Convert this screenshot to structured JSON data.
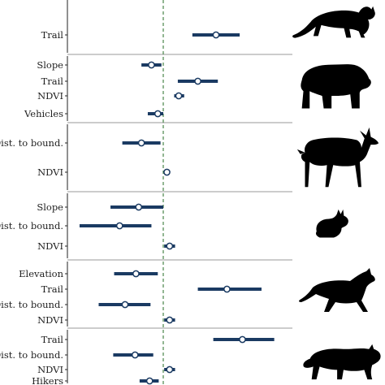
{
  "chart_data": {
    "type": "coefficient-plot",
    "reference_line": 0,
    "reference_line_color": "#3a7a3a",
    "interval_color": "#1a3a62",
    "point_fill": "#ffffff",
    "separator_color": "#9a9a9a",
    "panels": [
      {
        "animal": "cougar-silhouette",
        "rows": [
          {
            "label": "Trail",
            "est": 0.58,
            "lo": 0.32,
            "hi": 0.84
          }
        ]
      },
      {
        "animal": "black-bear-silhouette",
        "rows": [
          {
            "label": "Slope",
            "est": -0.13,
            "lo": -0.24,
            "hi": -0.02
          },
          {
            "label": "Trail",
            "est": 0.38,
            "lo": 0.16,
            "hi": 0.6
          },
          {
            "label": "NDVI",
            "est": 0.17,
            "lo": 0.12,
            "hi": 0.23
          },
          {
            "label": "Vehicles",
            "est": -0.06,
            "lo": -0.17,
            "hi": 0.0
          }
        ]
      },
      {
        "animal": "deer-silhouette",
        "rows": [
          {
            "label": "Dist. to bound.",
            "est": -0.24,
            "lo": -0.45,
            "hi": -0.03
          },
          {
            "label": "NDVI",
            "est": 0.04,
            "lo": 0.01,
            "hi": 0.07
          }
        ]
      },
      {
        "animal": "rabbit-silhouette",
        "rows": [
          {
            "label": "Slope",
            "est": -0.27,
            "lo": -0.58,
            "hi": 0.0
          },
          {
            "label": "Dist. to bound.",
            "est": -0.48,
            "lo": -0.92,
            "hi": -0.13
          },
          {
            "label": "NDVI",
            "est": 0.07,
            "lo": 0.01,
            "hi": 0.13
          }
        ]
      },
      {
        "animal": "coyote-silhouette",
        "rows": [
          {
            "label": "Elevation",
            "est": -0.3,
            "lo": -0.54,
            "hi": -0.06
          },
          {
            "label": "Trail",
            "est": 0.7,
            "lo": 0.38,
            "hi": 1.08
          },
          {
            "label": "Dist. to bound.",
            "est": -0.42,
            "lo": -0.71,
            "hi": -0.14
          },
          {
            "label": "NDVI",
            "est": 0.07,
            "lo": 0.01,
            "hi": 0.13
          }
        ]
      },
      {
        "animal": "bobcat-silhouette",
        "rows": [
          {
            "label": "Trail",
            "est": 0.87,
            "lo": 0.55,
            "hi": 1.22
          },
          {
            "label": "Dist. to bound.",
            "est": -0.31,
            "lo": -0.55,
            "hi": -0.11
          },
          {
            "label": "NDVI",
            "est": 0.07,
            "lo": 0.01,
            "hi": 0.13
          },
          {
            "label": "Hikers",
            "est": -0.15,
            "lo": -0.26,
            "hi": -0.05
          }
        ]
      }
    ]
  }
}
